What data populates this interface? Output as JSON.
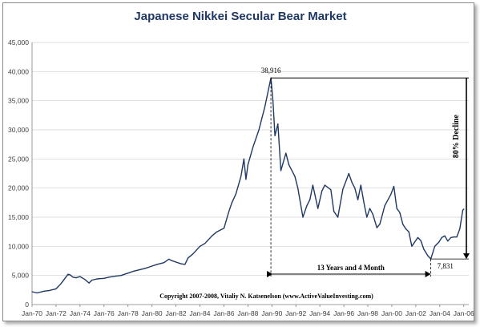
{
  "chart_data": {
    "type": "line",
    "title": "Japanese Nikkei Secular Bear Market",
    "xlabel": "",
    "ylabel": "",
    "ylim": [
      0,
      45000
    ],
    "xlim": [
      "1970-01",
      "2006-06"
    ],
    "y_ticks": [
      "0",
      "5,000",
      "10,000",
      "15,000",
      "20,000",
      "25,000",
      "30,000",
      "35,000",
      "40,000",
      "45,000"
    ],
    "y_tick_values": [
      0,
      5000,
      10000,
      15000,
      20000,
      25000,
      30000,
      35000,
      40000,
      45000
    ],
    "x_ticks": [
      "Jan-70",
      "Jan-72",
      "Jan-74",
      "Jan-76",
      "Jan-78",
      "Jan-80",
      "Jan-82",
      "Jan-84",
      "Jan-86",
      "Jan-88",
      "Jan-90",
      "Jan-92",
      "Jan-94",
      "Jan-96",
      "Jan-98",
      "Jan-00",
      "Jan-02",
      "Jan-04",
      "Jan-06"
    ],
    "x_tick_years": [
      1970,
      1972,
      1974,
      1976,
      1978,
      1980,
      1982,
      1984,
      1986,
      1988,
      1990,
      1992,
      1994,
      1996,
      1998,
      2000,
      2002,
      2004,
      2006
    ],
    "grid": "horizontal",
    "line_color": "#1f3864",
    "series": [
      {
        "name": "",
        "x": [
          "1970-01",
          "1970-06",
          "1971-01",
          "1971-06",
          "1972-01",
          "1972-06",
          "1973-01",
          "1973-03",
          "1973-06",
          "1973-09",
          "1974-01",
          "1974-06",
          "1974-10",
          "1975-01",
          "1975-06",
          "1976-01",
          "1976-06",
          "1977-01",
          "1977-06",
          "1978-01",
          "1978-06",
          "1979-01",
          "1979-06",
          "1980-01",
          "1980-06",
          "1981-01",
          "1981-06",
          "1981-08",
          "1982-01",
          "1982-06",
          "1982-10",
          "1983-01",
          "1983-06",
          "1984-01",
          "1984-06",
          "1985-01",
          "1985-06",
          "1986-01",
          "1986-06",
          "1986-09",
          "1987-01",
          "1987-06",
          "1987-09",
          "1987-11",
          "1988-01",
          "1988-06",
          "1988-12",
          "1989-06",
          "1989-12",
          "1990-02",
          "1990-04",
          "1990-07",
          "1990-10",
          "1991-03",
          "1991-06",
          "1991-12",
          "1992-03",
          "1992-08",
          "1992-12",
          "1993-03",
          "1993-06",
          "1993-11",
          "1994-03",
          "1994-06",
          "1994-12",
          "1995-03",
          "1995-07",
          "1995-12",
          "1996-06",
          "1996-09",
          "1996-12",
          "1997-03",
          "1997-06",
          "1997-09",
          "1997-12",
          "1998-03",
          "1998-06",
          "1998-10",
          "1999-01",
          "1999-06",
          "1999-12",
          "2000-03",
          "2000-06",
          "2000-09",
          "2000-12",
          "2001-03",
          "2001-06",
          "2001-09",
          "2002-03",
          "2002-06",
          "2002-09",
          "2003-01",
          "2003-04",
          "2003-08",
          "2003-12",
          "2004-03",
          "2004-06",
          "2004-09",
          "2004-12",
          "2005-03",
          "2005-06",
          "2005-09",
          "2005-12",
          "2006-01"
        ],
        "values": [
          2200,
          2000,
          2300,
          2400,
          2700,
          3600,
          5200,
          5100,
          4700,
          4600,
          4800,
          4300,
          3700,
          4200,
          4400,
          4500,
          4700,
          4900,
          5000,
          5400,
          5700,
          6000,
          6200,
          6600,
          6900,
          7200,
          7800,
          7600,
          7300,
          7000,
          6900,
          8000,
          8700,
          10000,
          10500,
          11800,
          12500,
          13100,
          16000,
          17500,
          19000,
          22000,
          25000,
          21500,
          24000,
          27000,
          30000,
          34000,
          38916,
          35000,
          29000,
          31000,
          23000,
          26000,
          24000,
          22000,
          20000,
          15000,
          17000,
          18000,
          20500,
          16500,
          19500,
          20500,
          19700,
          16000,
          15000,
          19800,
          22500,
          21000,
          20000,
          18000,
          20500,
          17500,
          15000,
          16500,
          15500,
          13200,
          13800,
          17000,
          18900,
          20300,
          16500,
          15800,
          13800,
          13000,
          12500,
          10000,
          11500,
          11000,
          9500,
          8400,
          7831,
          10000,
          10700,
          11500,
          11800,
          10900,
          11500,
          11600,
          11600,
          13000,
          16200,
          16400
        ]
      }
    ],
    "annotations": {
      "peak_label": "38,916",
      "trough_label": "7,831",
      "duration_label": "13 Years and 4 Month",
      "decline_label": "80% Decline",
      "copyright_line": "Copyright 2007-2008, Vitaliy N. Katsenelson  (www.ActiveValueInvesting.com)"
    }
  }
}
